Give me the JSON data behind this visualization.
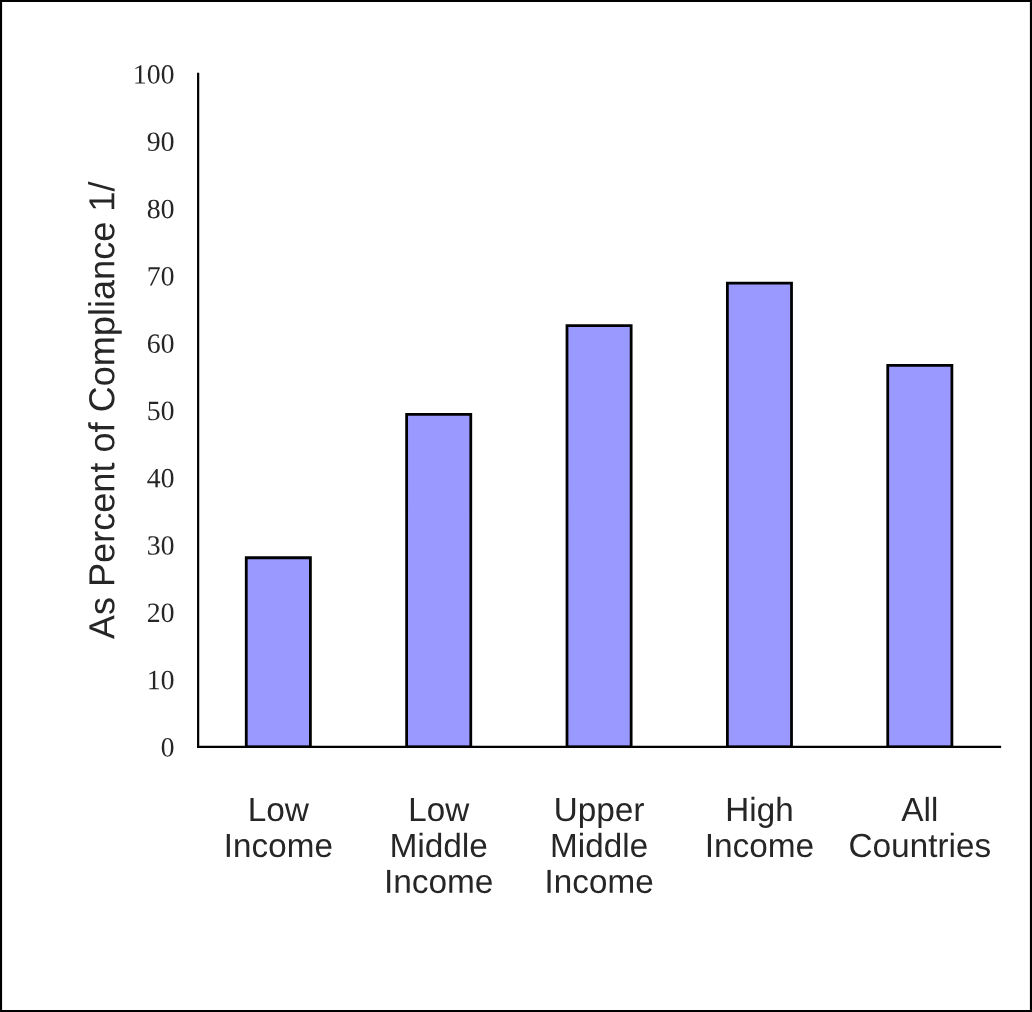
{
  "chart_data": {
    "type": "bar",
    "ylabel": "As Percent of Compliance 1/",
    "categories": [
      "Low\nIncome",
      "Low\nMiddle\nIncome",
      "Upper\nMiddle\nIncome",
      "High\nIncome",
      "All\nCountries"
    ],
    "values": [
      28.1,
      49.4,
      62.6,
      68.9,
      56.7
    ],
    "color": "#9999ff",
    "ylim": [
      0,
      100
    ],
    "yticks": [
      0,
      10,
      20,
      30,
      40,
      50,
      60,
      70,
      80,
      90,
      100
    ],
    "grid": false,
    "legend": false
  }
}
